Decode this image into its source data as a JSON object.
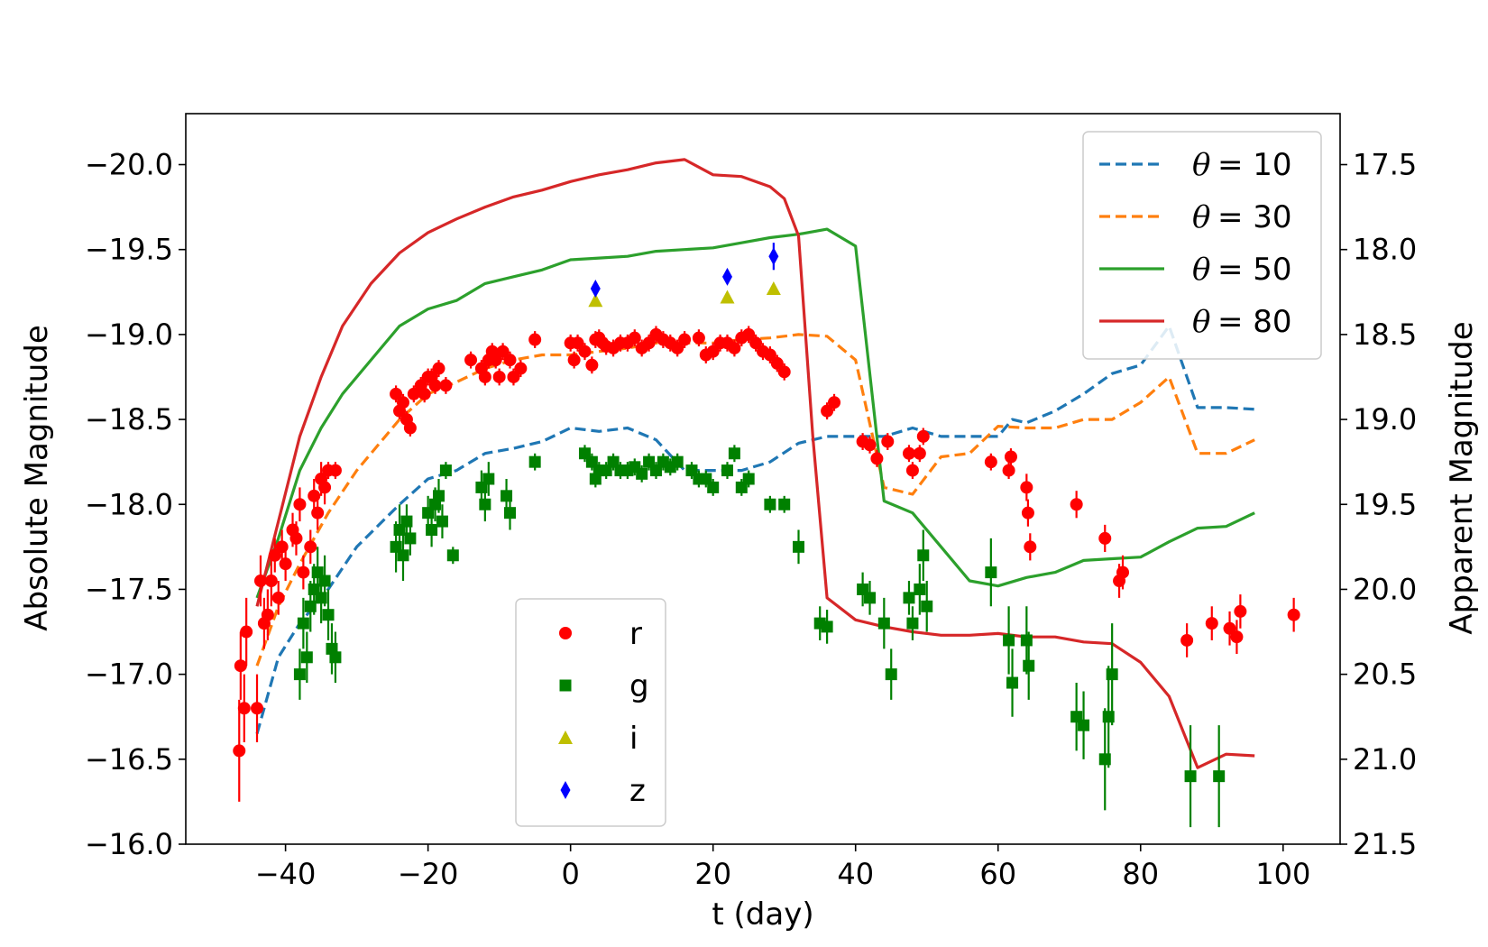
{
  "chart_data": {
    "type": "scatter",
    "title": "",
    "xlabel": "t (day)",
    "ylabel": "Absolute Magnitude",
    "ylabel_right": "Apparent Magnitude",
    "xlim": [
      -54,
      108
    ],
    "ylim_left": [
      -20.3,
      -16.0
    ],
    "ylim_right": [
      17.2,
      21.5
    ],
    "y_inverted": true,
    "x_ticks": [
      -40,
      -20,
      0,
      20,
      40,
      60,
      80,
      100
    ],
    "x_tick_labels": [
      "−40",
      "−20",
      "0",
      "20",
      "40",
      "60",
      "80",
      "100"
    ],
    "y_left_ticks": [
      -20.0,
      -19.5,
      -19.0,
      -18.5,
      -18.0,
      -17.5,
      -17.0,
      -16.5,
      -16.0
    ],
    "y_left_tick_labels": [
      "−20.0",
      "−19.5",
      "−19.0",
      "−18.5",
      "−18.0",
      "−17.5",
      "−17.0",
      "−16.5",
      "−16.0"
    ],
    "y_right_ticks": [
      17.5,
      18.0,
      18.5,
      19.0,
      19.5,
      20.0,
      20.5,
      21.0,
      21.5
    ],
    "y_right_tick_labels": [
      "17.5",
      "18.0",
      "18.5",
      "19.0",
      "19.5",
      "20.0",
      "20.5",
      "21.0",
      "21.5"
    ],
    "grid": false,
    "lines": [
      {
        "name": "θ = 10",
        "label_theta": "θ",
        "label_eq": "= 10",
        "color": "#1f77b4",
        "dash": true,
        "x": [
          -44,
          -41,
          -38,
          -34,
          -30,
          -24,
          -20,
          -16,
          -12,
          -8,
          -4,
          0,
          4,
          8,
          12,
          16,
          20,
          24,
          28,
          32,
          36,
          40,
          44,
          48,
          52,
          56,
          60,
          62,
          64,
          68,
          72,
          76,
          80,
          84,
          88,
          92,
          96
        ],
        "y": [
          -16.65,
          -17.1,
          -17.3,
          -17.5,
          -17.75,
          -18.0,
          -18.15,
          -18.2,
          -18.3,
          -18.33,
          -18.37,
          -18.45,
          -18.43,
          -18.45,
          -18.38,
          -18.2,
          -18.2,
          -18.2,
          -18.25,
          -18.36,
          -18.4,
          -18.4,
          -18.4,
          -18.45,
          -18.4,
          -18.4,
          -18.4,
          -18.5,
          -18.48,
          -18.55,
          -18.65,
          -18.77,
          -18.82,
          -19.05,
          -18.57,
          -18.57,
          -18.56
        ]
      },
      {
        "name": "θ = 30",
        "label_theta": "θ",
        "label_eq": "= 30",
        "color": "#ff7f0e",
        "dash": true,
        "x": [
          -44,
          -41,
          -38,
          -34,
          -30,
          -24,
          -20,
          -16,
          -12,
          -8,
          -4,
          0,
          4,
          8,
          12,
          16,
          20,
          24,
          28,
          32,
          36,
          40,
          44,
          48,
          52,
          56,
          60,
          64,
          68,
          72,
          76,
          80,
          84,
          88,
          92,
          96
        ],
        "y": [
          -17.05,
          -17.4,
          -17.65,
          -17.95,
          -18.2,
          -18.5,
          -18.65,
          -18.72,
          -18.8,
          -18.85,
          -18.88,
          -18.88,
          -18.9,
          -18.92,
          -18.95,
          -18.95,
          -18.95,
          -18.97,
          -18.98,
          -19.0,
          -18.99,
          -18.85,
          -18.1,
          -18.06,
          -18.28,
          -18.3,
          -18.46,
          -18.45,
          -18.45,
          -18.5,
          -18.5,
          -18.6,
          -18.75,
          -18.3,
          -18.3,
          -18.38
        ]
      },
      {
        "name": "θ = 50",
        "label_theta": "θ",
        "label_eq": "= 50",
        "color": "#2ca02c",
        "dash": false,
        "x": [
          -44,
          -41,
          -38,
          -35,
          -32,
          -28,
          -24,
          -20,
          -16,
          -12,
          -8,
          -4,
          0,
          4,
          8,
          12,
          16,
          20,
          24,
          28,
          32,
          36,
          40,
          44,
          48,
          52,
          56,
          60,
          64,
          68,
          72,
          76,
          80,
          84,
          88,
          92,
          96
        ],
        "y": [
          -17.45,
          -17.8,
          -18.2,
          -18.45,
          -18.65,
          -18.85,
          -19.05,
          -19.15,
          -19.2,
          -19.3,
          -19.34,
          -19.38,
          -19.44,
          -19.45,
          -19.46,
          -19.49,
          -19.5,
          -19.51,
          -19.54,
          -19.57,
          -19.59,
          -19.62,
          -19.52,
          -18.02,
          -17.95,
          -17.75,
          -17.55,
          -17.52,
          -17.57,
          -17.6,
          -17.67,
          -17.68,
          -17.69,
          -17.78,
          -17.86,
          -17.87,
          -17.95
        ]
      },
      {
        "name": "θ = 80",
        "label_theta": "θ",
        "label_eq": "= 80",
        "color": "#d62728",
        "dash": false,
        "x": [
          -44,
          -41,
          -38,
          -35,
          -32,
          -28,
          -24,
          -20,
          -16,
          -12,
          -8,
          -4,
          0,
          4,
          8,
          12,
          16,
          20,
          24,
          28,
          30,
          32,
          34,
          36,
          40,
          44,
          48,
          52,
          56,
          60,
          64,
          68,
          72,
          76,
          80,
          84,
          88,
          92,
          96
        ],
        "y": [
          -17.4,
          -17.9,
          -18.4,
          -18.75,
          -19.05,
          -19.3,
          -19.48,
          -19.6,
          -19.68,
          -19.75,
          -19.81,
          -19.85,
          -19.9,
          -19.94,
          -19.97,
          -20.01,
          -20.03,
          -19.94,
          -19.93,
          -19.87,
          -19.8,
          -19.58,
          -18.4,
          -17.45,
          -17.32,
          -17.28,
          -17.25,
          -17.23,
          -17.23,
          -17.24,
          -17.22,
          -17.22,
          -17.19,
          -17.18,
          -17.07,
          -16.87,
          -16.45,
          -16.53,
          -16.52
        ]
      }
    ],
    "points": [
      {
        "name": "r",
        "marker": "circle",
        "color": "#ff0000",
        "x": [
          -46.5,
          -46.3,
          -45.8,
          -45.5,
          -44.0,
          -43.5,
          -43.0,
          -42.5,
          -42.0,
          -41.5,
          -41.0,
          -40.5,
          -40.0,
          -39.0,
          -38.5,
          -38.0,
          -37.5,
          -36.5,
          -36.0,
          -35.5,
          -35.0,
          -34.5,
          -34.0,
          -33.0,
          -24.5,
          -24.0,
          -23.5,
          -23.0,
          -22.5,
          -22.0,
          -21.0,
          -20.5,
          -20.0,
          -19.5,
          -19.0,
          -18.5,
          -17.5,
          -14.0,
          -12.5,
          -12.0,
          -11.5,
          -11.0,
          -10.5,
          -10.0,
          -9.5,
          -8.5,
          -8.0,
          -7.0,
          -5.0,
          0.0,
          0.5,
          1.0,
          2.0,
          3.0,
          3.5,
          4.0,
          4.5,
          5.0,
          6.0,
          7.0,
          8.0,
          9.0,
          10.0,
          11.0,
          12.0,
          13.0,
          14.0,
          15.0,
          16.0,
          18.0,
          19.0,
          20.0,
          21.0,
          22.0,
          23.0,
          24.0,
          25.0,
          26.0,
          27.0,
          28.0,
          29.0,
          30.0,
          36.0,
          37.0,
          41.0,
          42.0,
          43.0,
          44.5,
          47.5,
          48.0,
          49.0,
          49.5,
          59.0,
          61.5,
          61.8,
          64.0,
          64.2,
          64.5,
          71.0,
          75.0,
          77.0,
          77.5,
          86.5,
          90.0,
          92.5,
          93.5,
          94.0,
          101.5
        ],
        "y": [
          -16.55,
          -17.05,
          -16.8,
          -17.25,
          -16.8,
          -17.55,
          -17.3,
          -17.35,
          -17.55,
          -17.7,
          -17.45,
          -17.75,
          -17.65,
          -17.85,
          -17.8,
          -18.0,
          -17.6,
          -17.75,
          -18.05,
          -17.95,
          -18.15,
          -18.1,
          -18.2,
          -18.2,
          -18.65,
          -18.55,
          -18.6,
          -18.5,
          -18.45,
          -18.65,
          -18.7,
          -18.65,
          -18.75,
          -18.75,
          -18.7,
          -18.8,
          -18.7,
          -18.85,
          -18.8,
          -18.75,
          -18.85,
          -18.9,
          -18.85,
          -18.75,
          -18.9,
          -18.85,
          -18.75,
          -18.8,
          -18.97,
          -18.95,
          -18.85,
          -18.95,
          -18.9,
          -18.82,
          -18.97,
          -18.98,
          -18.95,
          -18.93,
          -18.92,
          -18.95,
          -18.95,
          -18.98,
          -18.92,
          -18.95,
          -19.0,
          -18.97,
          -18.95,
          -18.92,
          -18.97,
          -18.98,
          -18.88,
          -18.9,
          -18.95,
          -18.95,
          -18.92,
          -18.98,
          -19.0,
          -18.95,
          -18.9,
          -18.88,
          -18.83,
          -18.78,
          -18.55,
          -18.6,
          -18.37,
          -18.35,
          -18.27,
          -18.37,
          -18.3,
          -18.2,
          -18.3,
          -18.4,
          -18.25,
          -18.2,
          -18.28,
          -18.1,
          -17.95,
          -17.75,
          -18.0,
          -17.8,
          -17.55,
          -17.6,
          -17.2,
          -17.3,
          -17.27,
          -17.22,
          -17.37,
          -17.35
        ],
        "err": [
          0.3,
          0.2,
          0.2,
          0.2,
          0.2,
          0.15,
          0.15,
          0.15,
          0.15,
          0.1,
          0.1,
          0.1,
          0.1,
          0.1,
          0.1,
          0.1,
          0.1,
          0.1,
          0.1,
          0.1,
          0.1,
          0.1,
          0.05,
          0.05,
          0.05,
          0.05,
          0.05,
          0.05,
          0.05,
          0.05,
          0.05,
          0.05,
          0.05,
          0.05,
          0.05,
          0.05,
          0.05,
          0.05,
          0.05,
          0.05,
          0.05,
          0.05,
          0.05,
          0.05,
          0.05,
          0.05,
          0.05,
          0.05,
          0.05,
          0.05,
          0.05,
          0.05,
          0.05,
          0.05,
          0.05,
          0.05,
          0.05,
          0.05,
          0.05,
          0.05,
          0.05,
          0.05,
          0.05,
          0.05,
          0.05,
          0.05,
          0.05,
          0.05,
          0.05,
          0.05,
          0.05,
          0.05,
          0.05,
          0.05,
          0.05,
          0.05,
          0.05,
          0.05,
          0.05,
          0.05,
          0.05,
          0.05,
          0.05,
          0.05,
          0.05,
          0.05,
          0.05,
          0.05,
          0.05,
          0.05,
          0.05,
          0.05,
          0.05,
          0.05,
          0.05,
          0.08,
          0.08,
          0.08,
          0.08,
          0.08,
          0.1,
          0.1,
          0.1,
          0.1,
          0.1,
          0.1,
          0.1,
          0.1
        ]
      },
      {
        "name": "g",
        "marker": "square",
        "color": "#008000",
        "x": [
          -38.0,
          -37.5,
          -37.0,
          -36.5,
          -36.0,
          -35.5,
          -35.0,
          -34.5,
          -34.0,
          -33.5,
          -33.0,
          -24.5,
          -24.0,
          -23.5,
          -23.0,
          -22.5,
          -20.0,
          -19.5,
          -19.0,
          -18.5,
          -18.0,
          -17.5,
          -16.5,
          -12.5,
          -12.0,
          -11.5,
          -9.0,
          -8.5,
          -5.0,
          2.0,
          3.0,
          3.5,
          4.0,
          5.0,
          6.0,
          7.0,
          8.0,
          9.0,
          10.0,
          11.0,
          12.0,
          13.0,
          14.0,
          15.0,
          17.0,
          18.0,
          19.0,
          20.0,
          22.0,
          23.0,
          24.0,
          25.0,
          28.0,
          30.0,
          32.0,
          35.0,
          36.0,
          41.0,
          42.0,
          44.0,
          45.0,
          47.5,
          48.0,
          49.0,
          49.5,
          50.0,
          59.0,
          61.5,
          62.0,
          64.0,
          64.3,
          71.0,
          72.0,
          75.0,
          75.5,
          76.0,
          87.0,
          91.0
        ],
        "y": [
          -17.0,
          -17.3,
          -17.1,
          -17.4,
          -17.5,
          -17.6,
          -17.45,
          -17.55,
          -17.35,
          -17.15,
          -17.1,
          -17.75,
          -17.85,
          -17.7,
          -17.9,
          -17.8,
          -17.95,
          -17.85,
          -18.0,
          -18.05,
          -17.9,
          -18.2,
          -17.7,
          -18.1,
          -18.0,
          -18.15,
          -18.05,
          -17.95,
          -18.25,
          -18.3,
          -18.25,
          -18.15,
          -18.2,
          -18.2,
          -18.25,
          -18.2,
          -18.2,
          -18.22,
          -18.18,
          -18.25,
          -18.2,
          -18.25,
          -18.22,
          -18.25,
          -18.2,
          -18.15,
          -18.15,
          -18.1,
          -18.2,
          -18.3,
          -18.1,
          -18.15,
          -18.0,
          -18.0,
          -17.75,
          -17.3,
          -17.28,
          -17.5,
          -17.45,
          -17.3,
          -17.0,
          -17.45,
          -17.3,
          -17.5,
          -17.7,
          -17.4,
          -17.6,
          -17.2,
          -16.95,
          -17.2,
          -17.05,
          -16.75,
          -16.7,
          -16.5,
          -16.75,
          -17.0,
          -16.4,
          -16.4
        ],
        "err": [
          0.15,
          0.15,
          0.15,
          0.15,
          0.15,
          0.15,
          0.15,
          0.15,
          0.15,
          0.15,
          0.15,
          0.15,
          0.15,
          0.15,
          0.1,
          0.1,
          0.1,
          0.1,
          0.1,
          0.1,
          0.1,
          0.05,
          0.05,
          0.1,
          0.1,
          0.1,
          0.1,
          0.1,
          0.05,
          0.05,
          0.05,
          0.05,
          0.05,
          0.05,
          0.05,
          0.05,
          0.05,
          0.05,
          0.05,
          0.05,
          0.05,
          0.05,
          0.05,
          0.05,
          0.05,
          0.05,
          0.05,
          0.05,
          0.05,
          0.05,
          0.05,
          0.05,
          0.05,
          0.05,
          0.1,
          0.1,
          0.1,
          0.1,
          0.1,
          0.15,
          0.15,
          0.1,
          0.1,
          0.15,
          0.15,
          0.15,
          0.2,
          0.2,
          0.2,
          0.2,
          0.2,
          0.2,
          0.2,
          0.3,
          0.3,
          0.3,
          0.3,
          0.3
        ]
      },
      {
        "name": "i",
        "marker": "triangle",
        "color": "#bfbf00",
        "x": [
          3.5,
          22.0,
          28.5
        ],
        "y": [
          -19.2,
          -19.22,
          -19.27
        ],
        "err": [
          0.0,
          0.0,
          0.0
        ]
      },
      {
        "name": "z",
        "marker": "diamond",
        "color": "#0000ff",
        "x": [
          3.5,
          22.0,
          28.5
        ],
        "y": [
          -19.27,
          -19.34,
          -19.46
        ],
        "err": [
          0.03,
          0.03,
          0.08
        ]
      }
    ]
  },
  "legend_lines_placement": "top-right",
  "legend_points_placement": "lower-center"
}
